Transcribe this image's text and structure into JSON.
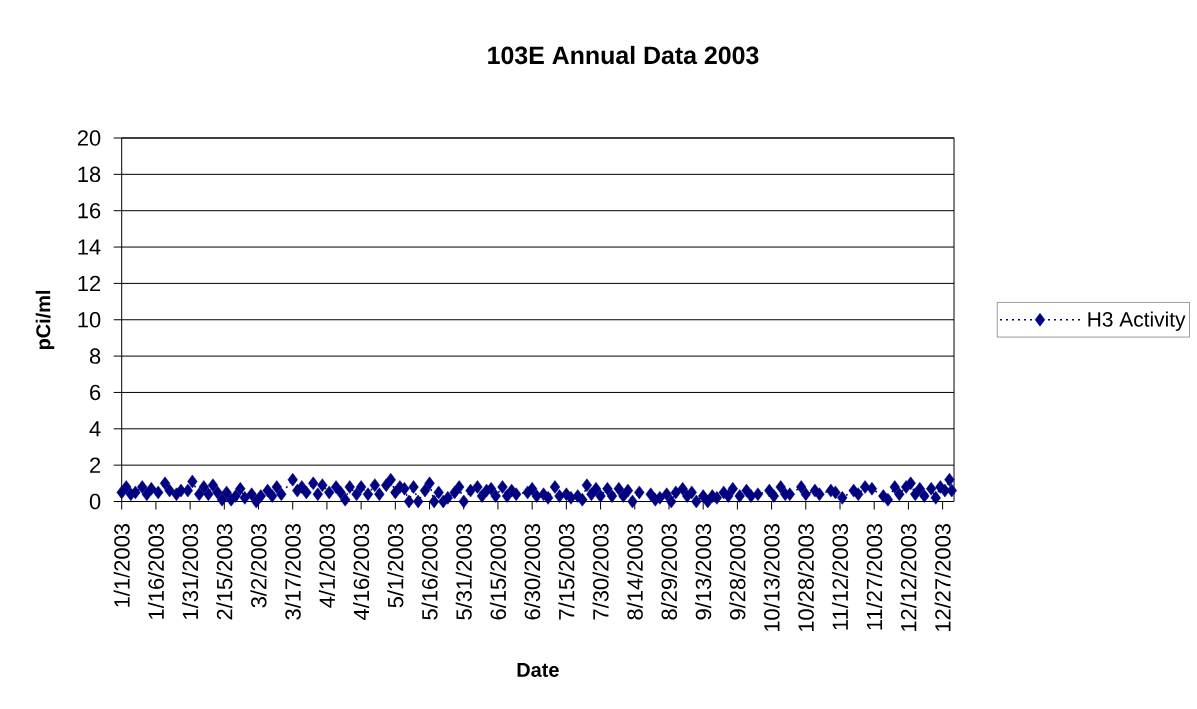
{
  "chart_data": {
    "type": "line",
    "title": "103E Annual Data 2003",
    "xlabel": "Date",
    "ylabel": "pCi/ml",
    "x": [
      "2003-01-01",
      "2003-01-03",
      "2003-01-05",
      "2003-01-07",
      "2003-01-10",
      "2003-01-12",
      "2003-01-14",
      "2003-01-17",
      "2003-01-20",
      "2003-01-22",
      "2003-01-25",
      "2003-01-27",
      "2003-01-30",
      "2003-02-01",
      "2003-02-04",
      "2003-02-06",
      "2003-02-08",
      "2003-02-10",
      "2003-02-12",
      "2003-02-14",
      "2003-02-16",
      "2003-02-18",
      "2003-02-20",
      "2003-02-22",
      "2003-02-24",
      "2003-02-27",
      "2003-03-01",
      "2003-03-03",
      "2003-03-06",
      "2003-03-08",
      "2003-03-10",
      "2003-03-12",
      "2003-03-17",
      "2003-03-19",
      "2003-03-21",
      "2003-03-23",
      "2003-03-26",
      "2003-03-28",
      "2003-03-30",
      "2003-04-02",
      "2003-04-05",
      "2003-04-07",
      "2003-04-09",
      "2003-04-11",
      "2003-04-14",
      "2003-04-16",
      "2003-04-19",
      "2003-04-22",
      "2003-04-24",
      "2003-04-27",
      "2003-04-29",
      "2003-05-01",
      "2003-05-03",
      "2003-05-05",
      "2003-05-07",
      "2003-05-09",
      "2003-05-11",
      "2003-05-14",
      "2003-05-16",
      "2003-05-18",
      "2003-05-20",
      "2003-05-22",
      "2003-05-24",
      "2003-05-27",
      "2003-05-29",
      "2003-05-31",
      "2003-06-03",
      "2003-06-06",
      "2003-06-08",
      "2003-06-10",
      "2003-06-12",
      "2003-06-14",
      "2003-06-17",
      "2003-06-19",
      "2003-06-21",
      "2003-06-23",
      "2003-06-28",
      "2003-06-30",
      "2003-07-02",
      "2003-07-05",
      "2003-07-07",
      "2003-07-10",
      "2003-07-12",
      "2003-07-15",
      "2003-07-17",
      "2003-07-20",
      "2003-07-22",
      "2003-07-24",
      "2003-07-26",
      "2003-07-28",
      "2003-07-30",
      "2003-08-02",
      "2003-08-04",
      "2003-08-07",
      "2003-08-09",
      "2003-08-11",
      "2003-08-13",
      "2003-08-16",
      "2003-08-21",
      "2003-08-23",
      "2003-08-25",
      "2003-08-28",
      "2003-08-30",
      "2003-09-01",
      "2003-09-04",
      "2003-09-06",
      "2003-09-08",
      "2003-09-10",
      "2003-09-13",
      "2003-09-15",
      "2003-09-17",
      "2003-09-19",
      "2003-09-22",
      "2003-09-24",
      "2003-09-26",
      "2003-09-29",
      "2003-10-02",
      "2003-10-04",
      "2003-10-07",
      "2003-10-12",
      "2003-10-14",
      "2003-10-17",
      "2003-10-19",
      "2003-10-21",
      "2003-10-26",
      "2003-10-28",
      "2003-11-01",
      "2003-11-03",
      "2003-11-08",
      "2003-11-10",
      "2003-11-13",
      "2003-11-18",
      "2003-11-20",
      "2003-11-23",
      "2003-11-26",
      "2003-12-01",
      "2003-12-03",
      "2003-12-06",
      "2003-12-08",
      "2003-12-11",
      "2003-12-13",
      "2003-12-15",
      "2003-12-17",
      "2003-12-19",
      "2003-12-22",
      "2003-12-24",
      "2003-12-26",
      "2003-12-28",
      "2003-12-30",
      "2003-12-31"
    ],
    "series": [
      {
        "name": "H3 Activity",
        "color": "#000080",
        "values": [
          0.5,
          0.8,
          0.4,
          0.5,
          0.8,
          0.4,
          0.7,
          0.5,
          1.0,
          0.6,
          0.4,
          0.6,
          0.6,
          1.1,
          0.4,
          0.8,
          0.4,
          0.9,
          0.5,
          0.1,
          0.5,
          0.1,
          0.3,
          0.7,
          0.2,
          0.4,
          0.0,
          0.3,
          0.6,
          0.3,
          0.8,
          0.4,
          1.2,
          0.6,
          0.8,
          0.5,
          1.0,
          0.4,
          0.9,
          0.5,
          0.8,
          0.5,
          0.1,
          0.8,
          0.4,
          0.8,
          0.4,
          0.9,
          0.4,
          0.9,
          1.2,
          0.5,
          0.8,
          0.7,
          0.0,
          0.8,
          0.0,
          0.6,
          1.0,
          0.0,
          0.5,
          0.0,
          0.2,
          0.5,
          0.8,
          0.0,
          0.6,
          0.8,
          0.3,
          0.6,
          0.7,
          0.3,
          0.8,
          0.3,
          0.6,
          0.4,
          0.5,
          0.7,
          0.3,
          0.4,
          0.2,
          0.8,
          0.3,
          0.4,
          0.2,
          0.3,
          0.1,
          0.9,
          0.4,
          0.7,
          0.3,
          0.7,
          0.3,
          0.7,
          0.3,
          0.6,
          0.0,
          0.5,
          0.4,
          0.1,
          0.2,
          0.4,
          0.0,
          0.5,
          0.7,
          0.3,
          0.5,
          0.0,
          0.3,
          0.0,
          0.3,
          0.2,
          0.5,
          0.3,
          0.7,
          0.3,
          0.6,
          0.3,
          0.4,
          0.6,
          0.3,
          0.8,
          0.4,
          0.4,
          0.8,
          0.4,
          0.6,
          0.4,
          0.6,
          0.5,
          0.2,
          0.6,
          0.4,
          0.8,
          0.7,
          0.3,
          0.1,
          0.8,
          0.4,
          0.8,
          1.0,
          0.4,
          0.7,
          0.3,
          0.7,
          0.2,
          0.8,
          0.6,
          1.2,
          0.6
        ]
      }
    ],
    "xlim": [
      "2003-01-01",
      "2004-01-01"
    ],
    "xticks": [
      {
        "value": "2003-01-01",
        "label": "1/1/2003"
      },
      {
        "value": "2003-01-16",
        "label": "1/16/2003"
      },
      {
        "value": "2003-01-31",
        "label": "1/31/2003"
      },
      {
        "value": "2003-02-15",
        "label": "2/15/2003"
      },
      {
        "value": "2003-03-02",
        "label": "3/2/2003"
      },
      {
        "value": "2003-03-17",
        "label": "3/17/2003"
      },
      {
        "value": "2003-04-01",
        "label": "4/1/2003"
      },
      {
        "value": "2003-04-16",
        "label": "4/16/2003"
      },
      {
        "value": "2003-05-01",
        "label": "5/1/2003"
      },
      {
        "value": "2003-05-16",
        "label": "5/16/2003"
      },
      {
        "value": "2003-05-31",
        "label": "5/31/2003"
      },
      {
        "value": "2003-06-15",
        "label": "6/15/2003"
      },
      {
        "value": "2003-06-30",
        "label": "6/30/2003"
      },
      {
        "value": "2003-07-15",
        "label": "7/15/2003"
      },
      {
        "value": "2003-07-30",
        "label": "7/30/2003"
      },
      {
        "value": "2003-08-14",
        "label": "8/14/2003"
      },
      {
        "value": "2003-08-29",
        "label": "8/29/2003"
      },
      {
        "value": "2003-09-13",
        "label": "9/13/2003"
      },
      {
        "value": "2003-09-28",
        "label": "9/28/2003"
      },
      {
        "value": "2003-10-13",
        "label": "10/13/2003"
      },
      {
        "value": "2003-10-28",
        "label": "10/28/2003"
      },
      {
        "value": "2003-11-12",
        "label": "11/12/2003"
      },
      {
        "value": "2003-11-27",
        "label": "11/27/2003"
      },
      {
        "value": "2003-12-12",
        "label": "12/12/2003"
      },
      {
        "value": "2003-12-27",
        "label": "12/27/2003"
      }
    ],
    "ylim": [
      0,
      20
    ],
    "yticks": [
      0,
      2,
      4,
      6,
      8,
      10,
      12,
      14,
      16,
      18,
      20
    ],
    "grid": "y",
    "legend": "right",
    "marker": "diamond",
    "line_style": "dotted"
  }
}
